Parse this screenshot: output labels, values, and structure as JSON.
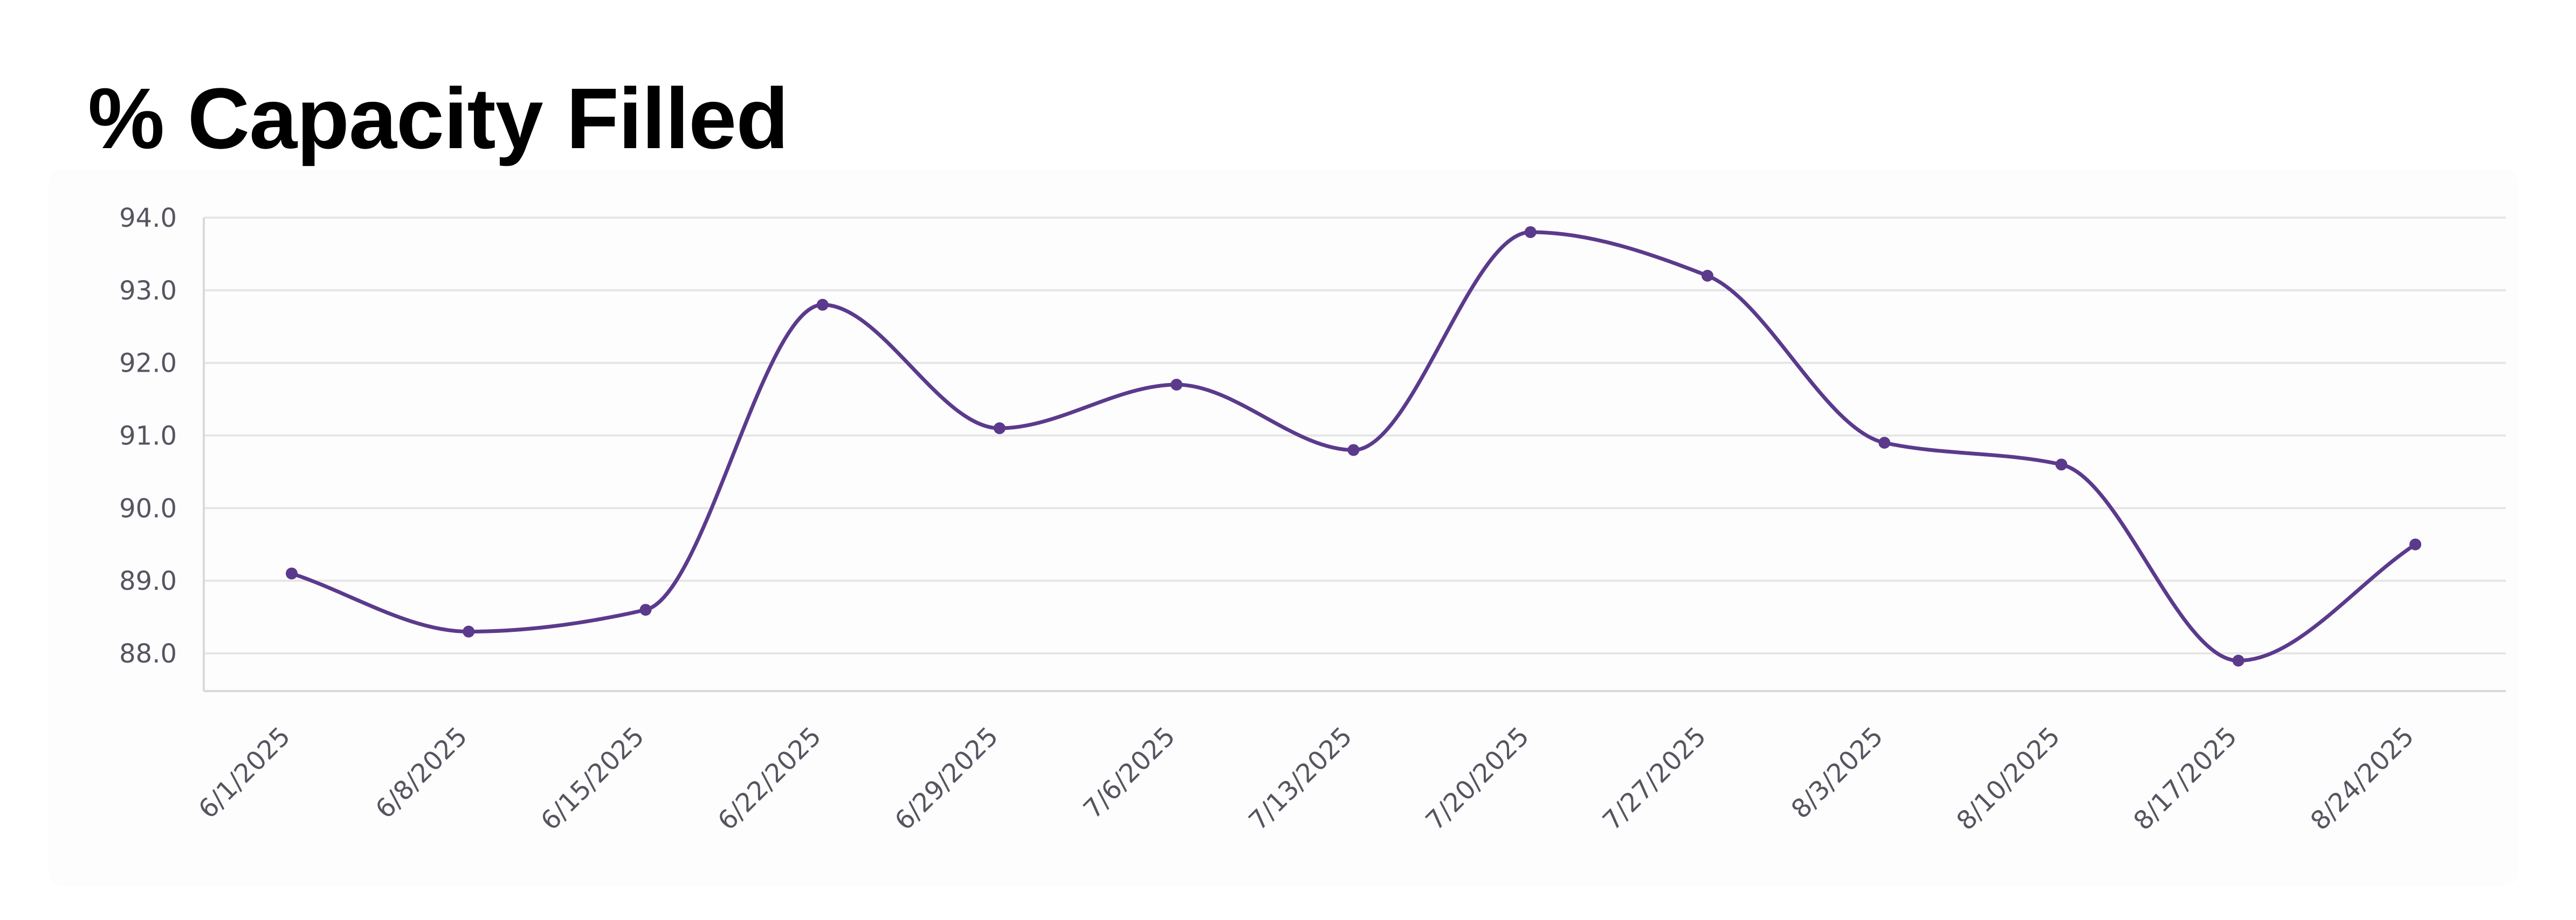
{
  "chart_data": {
    "type": "line",
    "title": "% Capacity Filled",
    "xlabel": "",
    "ylabel": "",
    "categories": [
      "6/1/2025",
      "6/8/2025",
      "6/15/2025",
      "6/22/2025",
      "6/29/2025",
      "7/6/2025",
      "7/13/2025",
      "7/20/2025",
      "7/27/2025",
      "8/3/2025",
      "8/10/2025",
      "8/17/2025",
      "8/24/2025"
    ],
    "series": [
      {
        "values": [
          89.1,
          88.3,
          88.6,
          92.8,
          91.1,
          91.7,
          90.8,
          93.8,
          93.2,
          90.9,
          90.6,
          87.9,
          89.5
        ]
      }
    ],
    "y_ticks": [
      "88.0",
      "89.0",
      "90.0",
      "91.0",
      "92.0",
      "93.0",
      "94.0"
    ],
    "ylim": [
      88,
      94
    ],
    "grid": true,
    "line_style": "smooth",
    "legend": "none",
    "colors": {
      "line": "#5b3a8c",
      "marker": "#5b3a8c",
      "grid": "#e6e6e6",
      "axis": "#d9d9d9",
      "tick_text": "#555560"
    }
  }
}
